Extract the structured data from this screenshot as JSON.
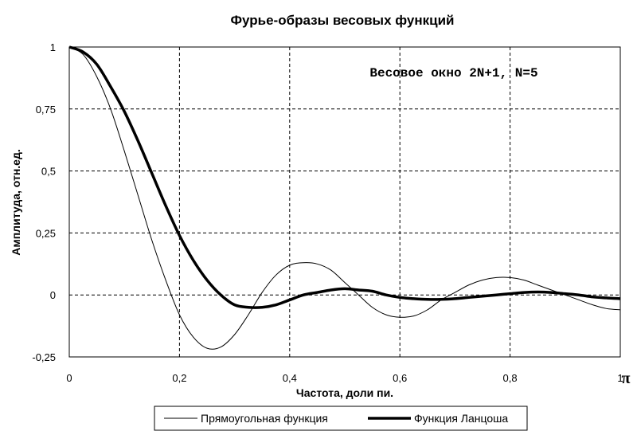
{
  "chart_data": {
    "type": "line",
    "title": "Фурье-образы весовых функций",
    "xlabel": "Частота, доли пи.",
    "ylabel": "Амплитуда, отн.ед.",
    "x_end_symbol": "π",
    "annotation": "Весовое окно 2N+1, N=5",
    "xlim": [
      0,
      1
    ],
    "ylim": [
      -0.25,
      1
    ],
    "x_ticks": [
      "0",
      "0,2",
      "0,4",
      "0,6",
      "0,8",
      "1"
    ],
    "y_ticks": [
      "1",
      "0,75",
      "0,5",
      "0,25",
      "0",
      "-0,25"
    ],
    "grid": true,
    "legend_position": "bottom",
    "series": [
      {
        "name": "Прямоугольная функция",
        "color": "#000000",
        "x": [
          0,
          0.025,
          0.05,
          0.075,
          0.1,
          0.125,
          0.15,
          0.175,
          0.2,
          0.225,
          0.25,
          0.275,
          0.3,
          0.325,
          0.35,
          0.375,
          0.4,
          0.425,
          0.45,
          0.475,
          0.5,
          0.525,
          0.55,
          0.575,
          0.6,
          0.625,
          0.65,
          0.675,
          0.7,
          0.725,
          0.75,
          0.775,
          0.8,
          0.825,
          0.85,
          0.875,
          0.9,
          0.925,
          0.95,
          0.975,
          1
        ],
        "values": [
          1,
          0.97,
          0.88,
          0.75,
          0.58,
          0.4,
          0.22,
          0.06,
          -0.08,
          -0.17,
          -0.215,
          -0.21,
          -0.16,
          -0.08,
          0.01,
          0.08,
          0.12,
          0.13,
          0.125,
          0.1,
          0.05,
          0,
          -0.05,
          -0.08,
          -0.09,
          -0.085,
          -0.06,
          -0.02,
          0.01,
          0.04,
          0.06,
          0.07,
          0.07,
          0.06,
          0.04,
          0.02,
          0,
          -0.02,
          -0.04,
          -0.055,
          -0.06
        ]
      },
      {
        "name": "Функция Ланцоша",
        "color": "#000000",
        "x": [
          0,
          0.025,
          0.05,
          0.075,
          0.1,
          0.125,
          0.15,
          0.175,
          0.2,
          0.225,
          0.25,
          0.275,
          0.3,
          0.325,
          0.35,
          0.375,
          0.4,
          0.425,
          0.45,
          0.475,
          0.5,
          0.525,
          0.55,
          0.575,
          0.6,
          0.625,
          0.65,
          0.675,
          0.7,
          0.725,
          0.75,
          0.775,
          0.8,
          0.825,
          0.85,
          0.875,
          0.9,
          0.925,
          0.95,
          0.975,
          1
        ],
        "values": [
          1,
          0.98,
          0.93,
          0.84,
          0.74,
          0.62,
          0.49,
          0.36,
          0.24,
          0.14,
          0.06,
          0,
          -0.04,
          -0.05,
          -0.05,
          -0.04,
          -0.02,
          0,
          0.01,
          0.02,
          0.025,
          0.02,
          0.015,
          0,
          -0.01,
          -0.015,
          -0.018,
          -0.018,
          -0.015,
          -0.01,
          -0.005,
          0,
          0.005,
          0.01,
          0.012,
          0.01,
          0.005,
          0,
          -0.008,
          -0.012,
          -0.015
        ]
      }
    ]
  }
}
